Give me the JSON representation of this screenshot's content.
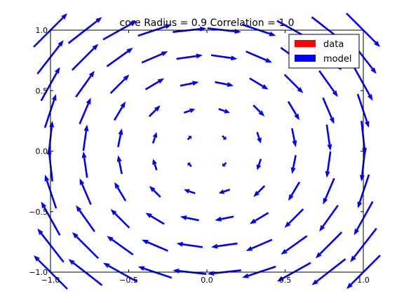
{
  "chart_data": {
    "type": "quiver",
    "title": "core Radius = 0.9 Correlation = 1.0",
    "xlabel": "",
    "ylabel": "",
    "xlim": [
      -1.0,
      1.0
    ],
    "ylim": [
      -1.0,
      1.0
    ],
    "x_ticks": [
      "−1.0",
      "−0.5",
      "0.0",
      "0.5",
      "1.0"
    ],
    "y_ticks": [
      "−1.0",
      "−0.5",
      "0.0",
      "0.5",
      "1.0"
    ],
    "grid": false,
    "legend_position": "top-right",
    "legend": [
      {
        "label": "data",
        "color": "#ff0000"
      },
      {
        "label": "model",
        "color": "#0000ff"
      }
    ],
    "series": [
      {
        "name": "data",
        "color": "#ff0000",
        "vectors": []
      },
      {
        "name": "model",
        "color": "#0000ff",
        "grid_x": [
          -1.0,
          -0.778,
          -0.556,
          -0.333,
          -0.111,
          0.111,
          0.333,
          0.556,
          0.778,
          1.0
        ],
        "grid_y": [
          -1.0,
          -0.778,
          -0.556,
          -0.333,
          -0.111,
          0.111,
          0.333,
          0.556,
          0.778,
          1.0
        ],
        "field": "rotation",
        "core_radius": 0.9,
        "correlation": 1.0
      }
    ]
  }
}
